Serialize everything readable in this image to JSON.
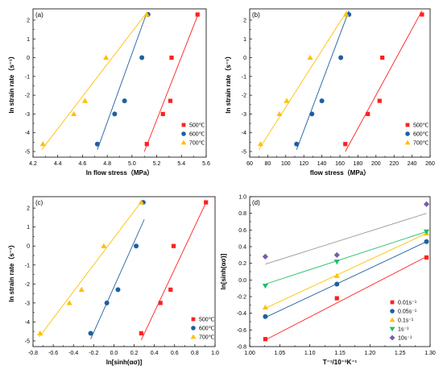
{
  "chart_data": [
    {
      "type": "scatter",
      "panel_label": "(a)",
      "xlabel": "ln flow stress（MPa）",
      "ylabel": "ln strain rate（s⁻¹）",
      "xlim": [
        4.2,
        5.6
      ],
      "ylim": [
        -5.3,
        2.6
      ],
      "xticks": [
        "4.2",
        "4.4",
        "4.6",
        "4.8",
        "5.0",
        "5.2",
        "5.4",
        "5.6"
      ],
      "yticks": [
        "-5",
        "-4",
        "-3",
        "-2",
        "-1",
        "0",
        "1",
        "2"
      ],
      "legend_position": "bottom-right",
      "series": [
        {
          "name": "500℃",
          "color": "#ff2020",
          "marker": "square",
          "x": [
            5.12,
            5.25,
            5.31,
            5.32,
            5.53
          ],
          "y": [
            -4.6,
            -3.0,
            -2.3,
            0.0,
            2.3
          ],
          "fit": {
            "x": [
              5.1,
              5.54
            ],
            "y": [
              -5.0,
              2.4
            ]
          }
        },
        {
          "name": "600℃",
          "color": "#1f5fa0",
          "marker": "circle",
          "x": [
            4.72,
            4.86,
            4.94,
            5.08,
            5.13
          ],
          "y": [
            -4.6,
            -3.0,
            -2.3,
            0.0,
            2.3
          ],
          "fit": {
            "x": [
              4.72,
              5.12
            ],
            "y": [
              -4.9,
              2.4
            ]
          }
        },
        {
          "name": "700℃",
          "color": "#ffc000",
          "marker": "triangle",
          "x": [
            4.28,
            4.53,
            4.62,
            4.79,
            5.12
          ],
          "y": [
            -4.6,
            -3.0,
            -2.3,
            0.0,
            2.3
          ],
          "fit": {
            "x": [
              4.27,
              5.12
            ],
            "y": [
              -4.9,
              2.4
            ]
          }
        }
      ]
    },
    {
      "type": "scatter",
      "panel_label": "(b)",
      "xlabel": "flow stress（MPa）",
      "ylabel": "ln strain rate（s⁻¹）",
      "xlim": [
        60,
        260
      ],
      "ylim": [
        -5.3,
        2.6
      ],
      "xticks": [
        "60",
        "80",
        "100",
        "120",
        "140",
        "160",
        "180",
        "200",
        "220",
        "240",
        "260"
      ],
      "yticks": [
        "-5",
        "-4",
        "-3",
        "-2",
        "-1",
        "0",
        "1",
        "2"
      ],
      "legend_position": "bottom-right",
      "series": [
        {
          "name": "500℃",
          "color": "#ff2020",
          "marker": "square",
          "x": [
            166,
            191,
            204,
            207,
            251
          ],
          "y": [
            -4.6,
            -3.0,
            -2.3,
            0.0,
            2.3
          ],
          "fit": {
            "x": [
              166,
              251
            ],
            "y": [
              -5.0,
              2.5
            ]
          }
        },
        {
          "name": "600℃",
          "color": "#1f5fa0",
          "marker": "circle",
          "x": [
            112,
            129,
            140,
            161,
            170
          ],
          "y": [
            -4.6,
            -3.0,
            -2.3,
            0.0,
            2.3
          ],
          "fit": {
            "x": [
              112,
              170
            ],
            "y": [
              -4.9,
              2.5
            ]
          }
        },
        {
          "name": "700℃",
          "color": "#ffc000",
          "marker": "triangle",
          "x": [
            72,
            93,
            101,
            127,
            167
          ],
          "y": [
            -4.6,
            -3.0,
            -2.3,
            0.0,
            2.3
          ],
          "fit": {
            "x": [
              70,
              168
            ],
            "y": [
              -4.9,
              2.5
            ]
          }
        }
      ]
    },
    {
      "type": "scatter",
      "panel_label": "(c)",
      "xlabel": "ln[sinh(ασ)]",
      "ylabel": "ln strain rate（s⁻¹）",
      "xlim": [
        -0.8,
        1.0
      ],
      "ylim": [
        -5.3,
        2.6
      ],
      "xticks": [
        "-0.8",
        "-0.6",
        "-0.4",
        "-0.2",
        "0.0",
        "0.2",
        "0.4",
        "0.6",
        "0.8",
        "1.0"
      ],
      "yticks": [
        "-5",
        "-4",
        "-3",
        "-2",
        "-1",
        "0",
        "1",
        "2"
      ],
      "legend_position": "bottom-right",
      "series": [
        {
          "name": "500℃",
          "color": "#ff2020",
          "marker": "square",
          "x": [
            0.27,
            0.46,
            0.56,
            0.59,
            0.91
          ],
          "y": [
            -4.6,
            -3.0,
            -2.3,
            0.0,
            2.3
          ],
          "fit": {
            "x": [
              0.27,
              0.92
            ],
            "y": [
              -4.95,
              2.4
            ]
          }
        },
        {
          "name": "600℃",
          "color": "#1f5fa0",
          "marker": "circle",
          "x": [
            -0.23,
            -0.07,
            0.04,
            0.22,
            0.29
          ],
          "y": [
            -4.6,
            -3.0,
            -2.3,
            0.0,
            2.3
          ],
          "fit": {
            "x": [
              -0.23,
              0.3
            ],
            "y": [
              -4.9,
              1.4
            ]
          }
        },
        {
          "name": "700℃",
          "color": "#ffc000",
          "marker": "triangle",
          "x": [
            -0.73,
            -0.44,
            -0.32,
            -0.1,
            0.27
          ],
          "y": [
            -4.6,
            -3.0,
            -2.3,
            0.0,
            2.3
          ],
          "fit": {
            "x": [
              -0.74,
              0.28
            ],
            "y": [
              -4.8,
              2.4
            ]
          }
        }
      ]
    },
    {
      "type": "scatter",
      "panel_label": "(d)",
      "xlabel": "T⁻¹/10⁻³K⁻¹",
      "ylabel": "ln[sinh(ασ)]",
      "xlim": [
        1.0,
        1.3
      ],
      "ylim": [
        -0.8,
        1.0
      ],
      "xticks": [
        "1.00",
        "1.05",
        "1.10",
        "1.15",
        "1.20",
        "1.25",
        "1.30"
      ],
      "yticks": [
        "-0.8",
        "-0.6",
        "-0.4",
        "-0.2",
        "0.0",
        "0.2",
        "0.4",
        "0.6",
        "0.8",
        "1.0"
      ],
      "legend_position": "bottom-right",
      "series": [
        {
          "name": "0.01s⁻¹",
          "color": "#ff2020",
          "marker": "square",
          "x": [
            1.026,
            1.145,
            1.294
          ],
          "y": [
            -0.71,
            -0.22,
            0.27
          ],
          "fit": {
            "x": [
              1.026,
              1.294
            ],
            "y": [
              -0.72,
              0.28
            ]
          }
        },
        {
          "name": "0.05s⁻¹",
          "color": "#1f5fa0",
          "marker": "circle",
          "x": [
            1.026,
            1.145,
            1.294
          ],
          "y": [
            -0.44,
            -0.05,
            0.46
          ],
          "fit": {
            "x": [
              1.026,
              1.294
            ],
            "y": [
              -0.45,
              0.46
            ]
          }
        },
        {
          "name": "0.1s⁻¹",
          "color": "#ffc000",
          "marker": "triangle",
          "x": [
            1.026,
            1.145,
            1.294
          ],
          "y": [
            -0.33,
            0.05,
            0.56
          ],
          "fit": {
            "x": [
              1.026,
              1.294
            ],
            "y": [
              -0.34,
              0.56
            ]
          }
        },
        {
          "name": "1s⁻¹",
          "color": "#1dbf6a",
          "marker": "triangle-down",
          "x": [
            1.026,
            1.145,
            1.294
          ],
          "y": [
            -0.07,
            0.22,
            0.58
          ],
          "fit": {
            "x": [
              1.026,
              1.294
            ],
            "y": [
              -0.05,
              0.58
            ]
          }
        },
        {
          "name": "10s⁻¹",
          "color": "#7a5ca8",
          "marker": "diamond",
          "x": [
            1.026,
            1.145,
            1.294
          ],
          "y": [
            0.28,
            0.3,
            0.91
          ],
          "fit": {
            "x": [
              1.026,
              1.294
            ],
            "y": [
              0.19,
              0.8
            ]
          }
        }
      ]
    }
  ]
}
